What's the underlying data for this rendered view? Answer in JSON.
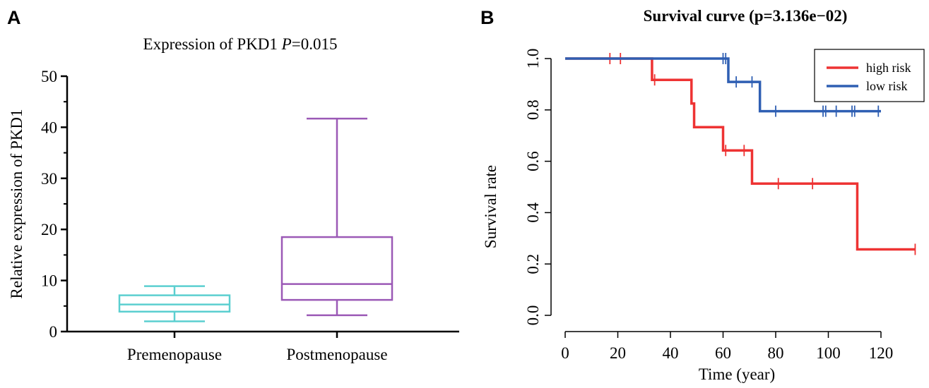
{
  "panels": {
    "a_label": "A",
    "b_label": "B"
  },
  "chart_data": [
    {
      "type": "box",
      "title": "Expression of PKD1 ",
      "title_p_symbol": "P",
      "title_p_value": "=0.015",
      "xlabel": "",
      "ylabel": "Relative expression of PKD1",
      "ylim": [
        0,
        50
      ],
      "yticks": [
        0,
        10,
        20,
        30,
        40,
        50
      ],
      "grid": false,
      "categories": [
        "Premenopause",
        "Postmenopause"
      ],
      "boxes": [
        {
          "name": "Premenopause",
          "min": 2.0,
          "q1": 3.9,
          "median": 5.3,
          "q3": 7.1,
          "max": 8.9,
          "color": "#5bcfd0"
        },
        {
          "name": "Postmenopause",
          "min": 3.2,
          "q1": 6.2,
          "median": 9.3,
          "q3": 18.5,
          "max": 41.7,
          "color": "#9b59b6"
        }
      ]
    },
    {
      "type": "line",
      "subtype": "kaplan-meier",
      "title": "Survival curve (p=3.136e−02)",
      "xlabel": "Time (year)",
      "ylabel": "Survival rate",
      "xlim": [
        0,
        135
      ],
      "ylim": [
        0,
        1.0
      ],
      "xticks": [
        0,
        20,
        40,
        60,
        80,
        100,
        120
      ],
      "yticks": [
        0.0,
        0.2,
        0.4,
        0.6,
        0.8,
        1.0
      ],
      "ytick_labels": [
        "0.0",
        "0.2",
        "0.4",
        "0.6",
        "0.8",
        "1.0"
      ],
      "grid": false,
      "legend_position": "top-right",
      "series": [
        {
          "name": "high risk",
          "color": "#ee3333",
          "steps": [
            [
              0,
              1.0
            ],
            [
              33,
              0.917
            ],
            [
              48,
              0.825
            ],
            [
              49,
              0.733
            ],
            [
              60,
              0.642
            ],
            [
              71,
              0.513
            ],
            [
              111,
              0.257
            ],
            [
              133,
              0.257
            ]
          ],
          "censored": [
            [
              17,
              1.0
            ],
            [
              21,
              1.0
            ],
            [
              34,
              0.917
            ],
            [
              61,
              0.642
            ],
            [
              68,
              0.642
            ],
            [
              81,
              0.513
            ],
            [
              94,
              0.513
            ],
            [
              133,
              0.257
            ]
          ]
        },
        {
          "name": "low risk",
          "color": "#2f5fb3",
          "steps": [
            [
              0,
              1.0
            ],
            [
              62,
              0.909
            ],
            [
              74,
              0.795
            ],
            [
              120,
              0.795
            ]
          ],
          "censored": [
            [
              60,
              1.0
            ],
            [
              61,
              1.0
            ],
            [
              65,
              0.909
            ],
            [
              71,
              0.909
            ],
            [
              80,
              0.795
            ],
            [
              98,
              0.795
            ],
            [
              99,
              0.795
            ],
            [
              103,
              0.795
            ],
            [
              109,
              0.795
            ],
            [
              110,
              0.795
            ],
            [
              119,
              0.795
            ]
          ]
        }
      ]
    }
  ]
}
